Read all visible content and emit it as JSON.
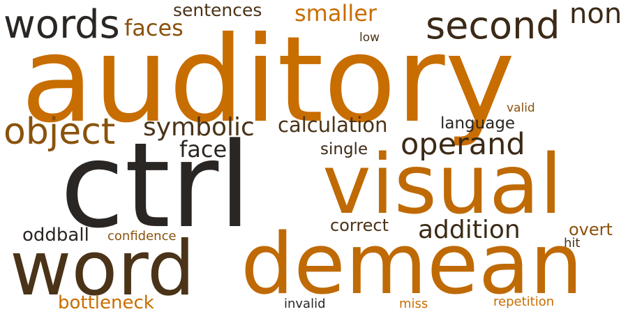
{
  "word_cloud": {
    "words": [
      {
        "text": "auditory",
        "color": "#c86d00"
      },
      {
        "text": "ctrl",
        "color": "#2a2623"
      },
      {
        "text": "visual",
        "color": "#bf6a05"
      },
      {
        "text": "demean",
        "color": "#bf6a05"
      },
      {
        "text": "word",
        "color": "#4a3318"
      },
      {
        "text": "words",
        "color": "#2a2623"
      },
      {
        "text": "second",
        "color": "#3b2a17"
      },
      {
        "text": "object",
        "color": "#8a520c"
      },
      {
        "text": "operand",
        "color": "#3b2a17"
      },
      {
        "text": "symbolic",
        "color": "#4a3318"
      },
      {
        "text": "addition",
        "color": "#3b2a17"
      },
      {
        "text": "calculation",
        "color": "#4a3318"
      },
      {
        "text": "faces",
        "color": "#8a520c"
      },
      {
        "text": "smaller",
        "color": "#c86d00"
      },
      {
        "text": "non",
        "color": "#3b2a17"
      },
      {
        "text": "sentences",
        "color": "#4a3318"
      },
      {
        "text": "face",
        "color": "#2a2623"
      },
      {
        "text": "language",
        "color": "#2a2623"
      },
      {
        "text": "single",
        "color": "#3b2a17"
      },
      {
        "text": "correct",
        "color": "#4a3318"
      },
      {
        "text": "oddball",
        "color": "#2a2623"
      },
      {
        "text": "bottleneck",
        "color": "#c86d00"
      },
      {
        "text": "overt",
        "color": "#8a520c"
      },
      {
        "text": "confidence",
        "color": "#8a520c"
      },
      {
        "text": "hit",
        "color": "#4a3318"
      },
      {
        "text": "valid",
        "color": "#8a520c"
      },
      {
        "text": "low",
        "color": "#4a3318"
      },
      {
        "text": "invalid",
        "color": "#2a2623"
      },
      {
        "text": "miss",
        "color": "#c86d00"
      },
      {
        "text": "repetition",
        "color": "#c86d00"
      }
    ]
  }
}
